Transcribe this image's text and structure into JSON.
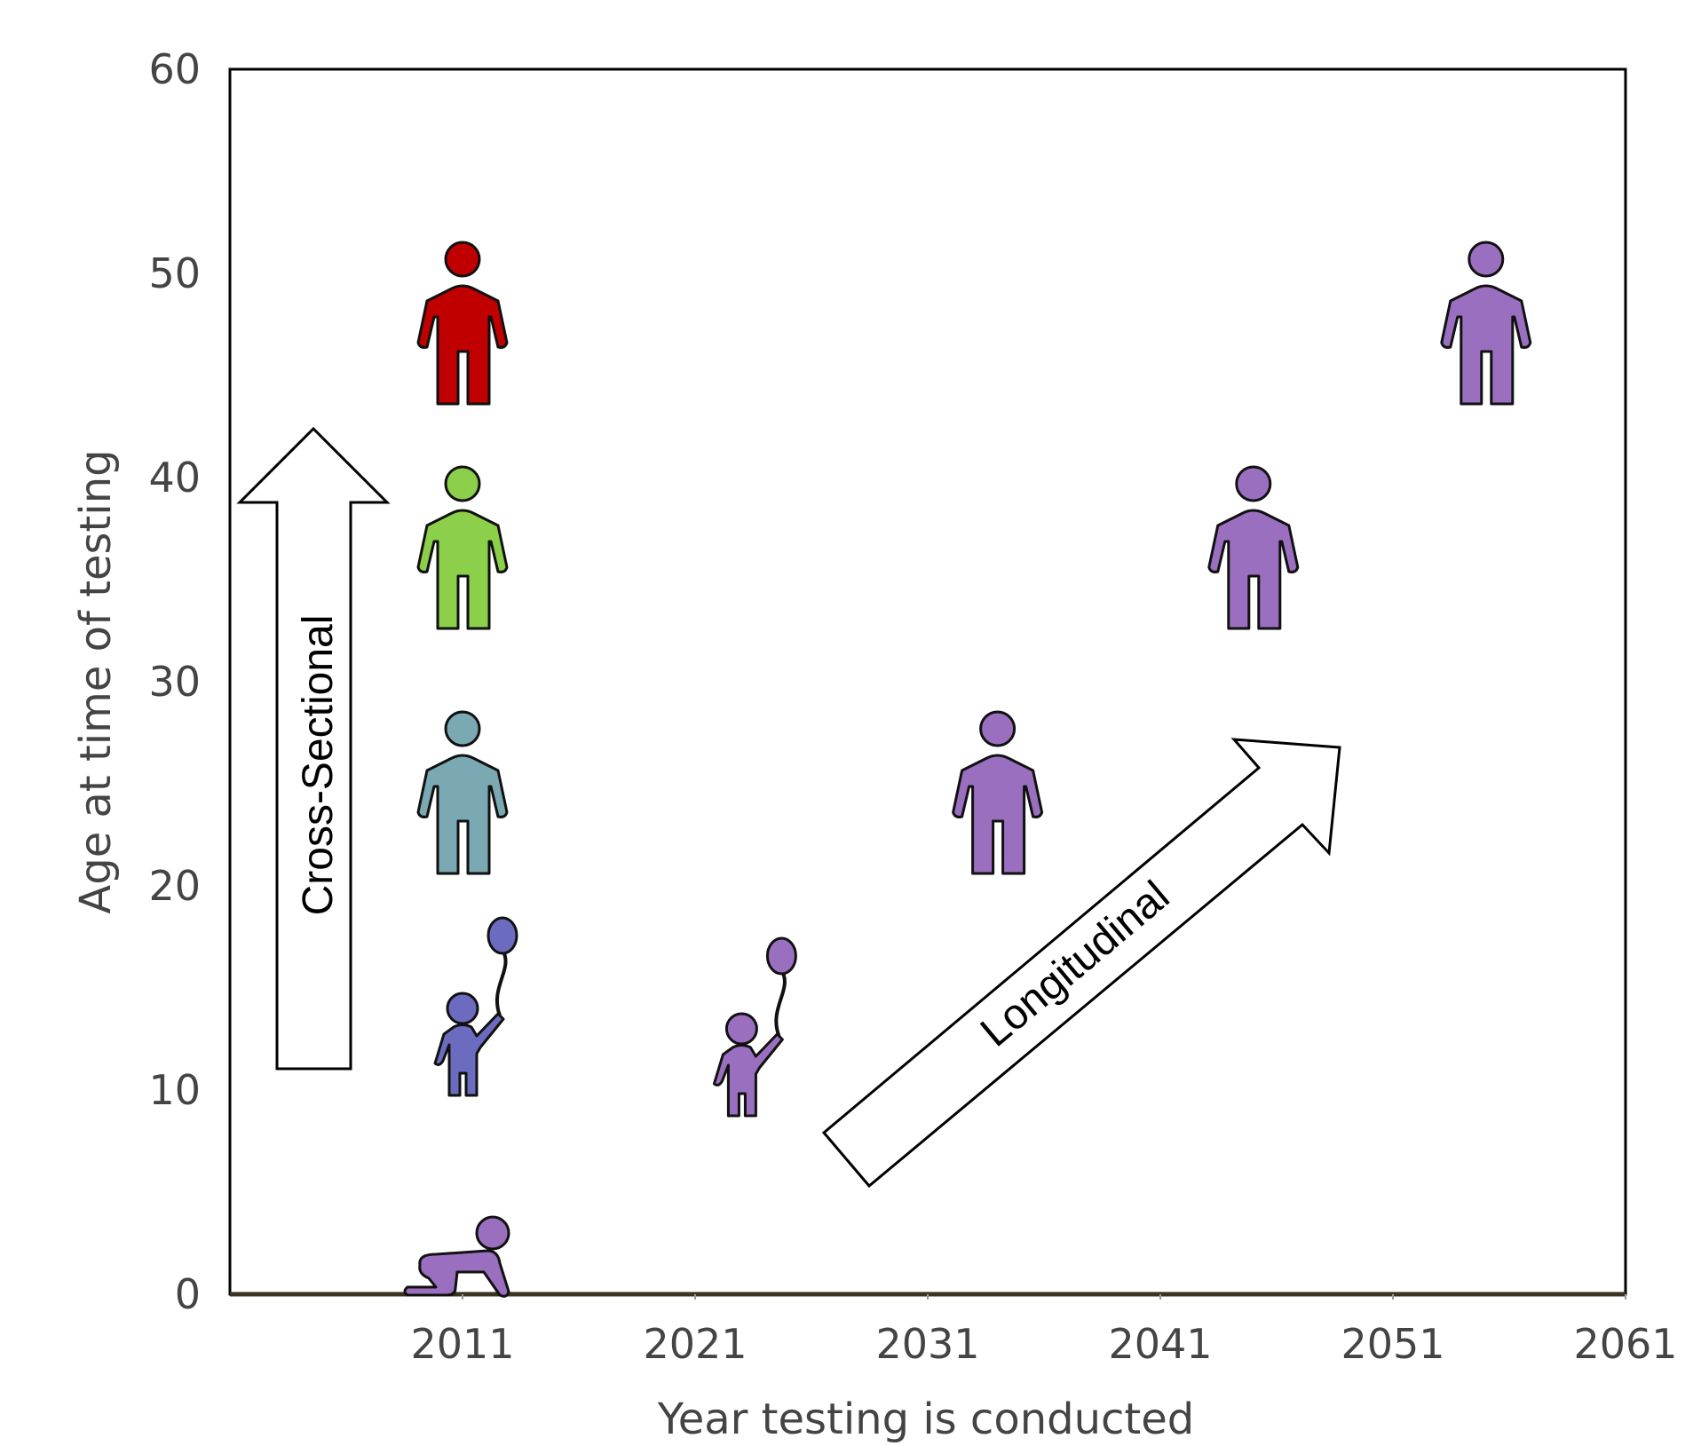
{
  "chart_data": {
    "type": "scatter",
    "title": "",
    "xlabel": "Year testing is conducted",
    "ylabel": "Age at time of testing",
    "xlim": [
      2001,
      2061
    ],
    "ylim": [
      0,
      60
    ],
    "x_ticks": [
      "2011",
      "2021",
      "2031",
      "2041",
      "2051",
      "2061"
    ],
    "y_ticks": [
      "0",
      "10",
      "20",
      "30",
      "40",
      "50",
      "60"
    ],
    "grid": false,
    "points": [
      {
        "x": 2011,
        "y": 1,
        "icon": "crawling-baby-icon",
        "color": "#9b6fbf"
      },
      {
        "x": 2011,
        "y": 12,
        "icon": "child-with-balloon-icon",
        "color": "#6b6bbf"
      },
      {
        "x": 2011,
        "y": 24,
        "icon": "adult-person-icon",
        "color": "#7aa8b3"
      },
      {
        "x": 2011,
        "y": 36,
        "icon": "adult-person-icon",
        "color": "#8bcf4a"
      },
      {
        "x": 2011,
        "y": 47,
        "icon": "adult-person-icon",
        "color": "#c00000"
      },
      {
        "x": 2023,
        "y": 11,
        "icon": "child-with-balloon-icon",
        "color": "#9b6fbf"
      },
      {
        "x": 2034,
        "y": 24,
        "icon": "adult-person-icon",
        "color": "#9b6fbf"
      },
      {
        "x": 2045,
        "y": 36,
        "icon": "adult-person-icon",
        "color": "#9b6fbf"
      },
      {
        "x": 2055,
        "y": 47,
        "icon": "adult-person-icon",
        "color": "#9b6fbf"
      }
    ],
    "annotations": {
      "cross_sectional": "Cross-Sectional",
      "longitudinal": "Longitudinal"
    }
  }
}
